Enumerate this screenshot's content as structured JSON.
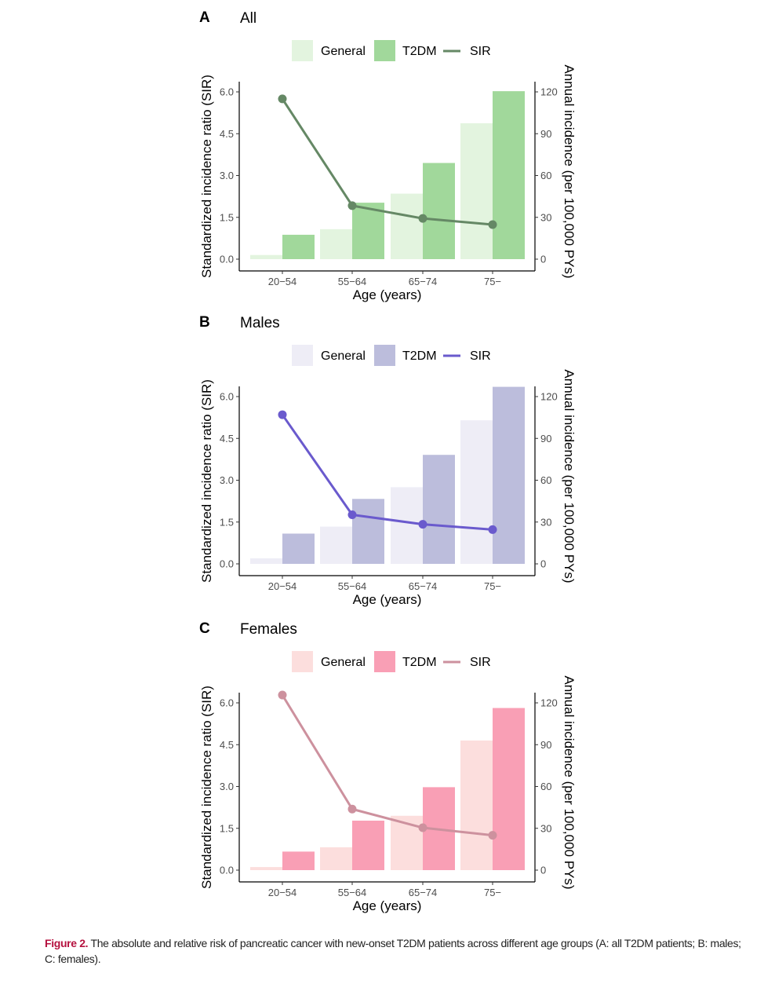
{
  "caption": {
    "label": "Figure 2.",
    "text": " The absolute and relative risk of pancreatic cancer with new-onset T2DM patients across different age groups (A: all T2DM patients; B: males; C: females)."
  },
  "chart_data": [
    {
      "type": "bar",
      "panel": "A",
      "title": "All",
      "xlabel": "Age (years)",
      "ylabel": "Standardized incidence ratio (SIR)",
      "y2label": "Annual incidence (per 100,000 PYs)",
      "categories": [
        "20−54",
        "55−64",
        "65−74",
        "75−"
      ],
      "ylim": [
        0,
        6.0
      ],
      "yticks": [
        "0.0",
        "1.5",
        "3.0",
        "4.5",
        "6.0"
      ],
      "y2lim": [
        0,
        120
      ],
      "y2ticks": [
        "0",
        "30",
        "60",
        "90",
        "120"
      ],
      "legend": [
        "General",
        "T2DM",
        "SIR"
      ],
      "legend_position": "top",
      "grid": false,
      "colors": {
        "general": "#e3f4df",
        "t2dm": "#a1d89b",
        "sir": "#658865"
      },
      "series": [
        {
          "name": "General",
          "axis": "right",
          "kind": "bar",
          "values": [
            3,
            21.5,
            47,
            97.5
          ]
        },
        {
          "name": "T2DM",
          "axis": "right",
          "kind": "bar",
          "values": [
            17.5,
            40.5,
            69,
            120.5
          ]
        },
        {
          "name": "SIR",
          "axis": "left",
          "kind": "line",
          "values": [
            5.75,
            1.92,
            1.46,
            1.24
          ]
        }
      ]
    },
    {
      "type": "bar",
      "panel": "B",
      "title": "Males",
      "xlabel": "Age (years)",
      "ylabel": "Standardized incidence ratio (SIR)",
      "y2label": "Annual incidence (per 100,000 PYs)",
      "categories": [
        "20−54",
        "55−64",
        "65−74",
        "75−"
      ],
      "ylim": [
        0,
        6.0
      ],
      "yticks": [
        "0.0",
        "1.5",
        "3.0",
        "4.5",
        "6.0"
      ],
      "y2lim": [
        0,
        120
      ],
      "y2ticks": [
        "0",
        "30",
        "60",
        "90",
        "120"
      ],
      "legend": [
        "General",
        "T2DM",
        "SIR"
      ],
      "legend_position": "top",
      "grid": false,
      "colors": {
        "general": "#eeedf6",
        "t2dm": "#bcbddc",
        "sir": "#6a5acd"
      },
      "series": [
        {
          "name": "General",
          "axis": "right",
          "kind": "bar",
          "values": [
            4,
            26.7,
            55,
            103
          ]
        },
        {
          "name": "T2DM",
          "axis": "right",
          "kind": "bar",
          "values": [
            21.7,
            46.6,
            78.2,
            127
          ]
        },
        {
          "name": "SIR",
          "axis": "left",
          "kind": "line",
          "values": [
            5.35,
            1.76,
            1.42,
            1.23
          ]
        }
      ]
    },
    {
      "type": "bar",
      "panel": "C",
      "title": "Females",
      "xlabel": "Age (years)",
      "ylabel": "Standardized incidence ratio (SIR)",
      "y2label": "Annual incidence (per 100,000 PYs)",
      "categories": [
        "20−54",
        "55−64",
        "65−74",
        "75−"
      ],
      "ylim": [
        0,
        6.0
      ],
      "yticks": [
        "0.0",
        "1.5",
        "3.0",
        "4.5",
        "6.0"
      ],
      "y2lim": [
        0,
        120
      ],
      "y2ticks": [
        "0",
        "30",
        "60",
        "90",
        "120"
      ],
      "legend": [
        "General",
        "T2DM",
        "SIR"
      ],
      "legend_position": "top",
      "grid": false,
      "colors": {
        "general": "#fcdedd",
        "t2dm": "#f99fb5",
        "sir": "#cd919e"
      },
      "series": [
        {
          "name": "General",
          "axis": "right",
          "kind": "bar",
          "values": [
            2.2,
            16.4,
            39,
            93
          ]
        },
        {
          "name": "T2DM",
          "axis": "right",
          "kind": "bar",
          "values": [
            13.3,
            35.5,
            59.5,
            116.3
          ]
        },
        {
          "name": "SIR",
          "axis": "left",
          "kind": "line",
          "values": [
            6.28,
            2.19,
            1.52,
            1.25
          ]
        }
      ]
    }
  ]
}
